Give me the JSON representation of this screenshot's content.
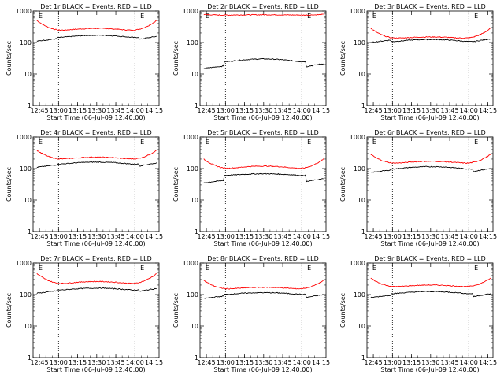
{
  "chart_data": [
    {
      "type": "line",
      "title": "Det 1r  BLACK = Events, RED = LLD",
      "xlabel": "Start Time (06-Jul-09 12:40:00)",
      "ylabel": "Counts/sec",
      "yscale": "log",
      "ylim": [
        1,
        1000
      ],
      "xticks": [
        "12:45",
        "13:00",
        "13:15",
        "13:30",
        "13:45",
        "14:00",
        "14:15"
      ],
      "yticks": [
        "1",
        "10",
        "100",
        "1000"
      ],
      "vlines": [
        "13:00",
        "14:00"
      ],
      "markers": [
        {
          "text": "E",
          "at": "12:43"
        },
        {
          "text": "E",
          "at": "14:03"
        }
      ],
      "series": [
        {
          "color": "#ff0000",
          "y_edge": 500,
          "y_mid": 280,
          "y_min": 230,
          "y_pre": 300,
          "y_post": 310,
          "gap": false
        },
        {
          "color": "#000000",
          "y_edge": 200,
          "y_mid": 170,
          "y_min": 140,
          "y_pre": 110,
          "y_post": 125,
          "gap": true
        }
      ]
    },
    {
      "type": "line",
      "title": "Det 2r  BLACK = Events, RED = LLD",
      "xlabel": "Start Time (06-Jul-09 12:40:00)",
      "ylabel": "Counts/sec",
      "yscale": "log",
      "ylim": [
        1,
        1000
      ],
      "xticks": [
        "12:45",
        "13:00",
        "13:15",
        "13:30",
        "13:45",
        "14:00",
        "14:15"
      ],
      "yticks": [
        "1",
        "10",
        "100",
        "1000"
      ],
      "vlines": [
        "13:00",
        "14:00"
      ],
      "markers": [
        {
          "text": "E",
          "at": "12:43"
        },
        {
          "text": "E",
          "at": "14:03"
        }
      ],
      "series": [
        {
          "color": "#ff0000",
          "y_edge": 780,
          "y_mid": 760,
          "y_min": 740,
          "y_pre": 760,
          "y_post": 760,
          "gap": false
        },
        {
          "color": "#000000",
          "y_edge": 32,
          "y_mid": 30,
          "y_min": 24,
          "y_pre": 15,
          "y_post": 17,
          "gap": true
        }
      ]
    },
    {
      "type": "line",
      "title": "Det 3r  BLACK = Events, RED = LLD",
      "xlabel": "Start Time (06-Jul-09 12:40:00)",
      "ylabel": "Counts/sec",
      "yscale": "log",
      "ylim": [
        1,
        1000
      ],
      "xticks": [
        "12:45",
        "13:00",
        "13:15",
        "13:30",
        "13:45",
        "14:00",
        "14:15"
      ],
      "yticks": [
        "1",
        "10",
        "100",
        "1000"
      ],
      "vlines": [
        "13:00",
        "14:00"
      ],
      "markers": [
        {
          "text": "E",
          "at": "12:43"
        },
        {
          "text": "E",
          "at": "14:03"
        }
      ],
      "series": [
        {
          "color": "#ff0000",
          "y_edge": 280,
          "y_mid": 150,
          "y_min": 130,
          "y_pre": 230,
          "y_post": 200,
          "gap": false
        },
        {
          "color": "#000000",
          "y_edge": 135,
          "y_mid": 125,
          "y_min": 105,
          "y_pre": 100,
          "y_post": 105,
          "gap": true
        }
      ]
    },
    {
      "type": "line",
      "title": "Det 4r  BLACK = Events, RED = LLD",
      "xlabel": "Start Time (06-Jul-09 12:40:00)",
      "ylabel": "Counts/sec",
      "yscale": "log",
      "ylim": [
        1,
        1000
      ],
      "xticks": [
        "12:45",
        "13:00",
        "13:15",
        "13:30",
        "13:45",
        "14:00",
        "14:15"
      ],
      "yticks": [
        "1",
        "10",
        "100",
        "1000"
      ],
      "vlines": [
        "13:00",
        "14:00"
      ],
      "markers": [
        {
          "text": "E",
          "at": "12:43"
        },
        {
          "text": "E",
          "at": "14:03"
        }
      ],
      "series": [
        {
          "color": "#ff0000",
          "y_edge": 380,
          "y_mid": 230,
          "y_min": 190,
          "y_pre": 260,
          "y_post": 320,
          "gap": false
        },
        {
          "color": "#000000",
          "y_edge": 175,
          "y_mid": 160,
          "y_min": 135,
          "y_pre": 110,
          "y_post": 120,
          "gap": true
        }
      ]
    },
    {
      "type": "line",
      "title": "Det 5r  BLACK = Events, RED = LLD",
      "xlabel": "Start Time (06-Jul-09 12:40:00)",
      "ylabel": "Counts/sec",
      "yscale": "log",
      "ylim": [
        1,
        1000
      ],
      "xticks": [
        "12:45",
        "13:00",
        "13:15",
        "13:30",
        "13:45",
        "14:00",
        "14:15"
      ],
      "yticks": [
        "1",
        "10",
        "100",
        "1000"
      ],
      "vlines": [
        "13:00",
        "14:00"
      ],
      "markers": [
        {
          "text": "E",
          "at": "12:43"
        },
        {
          "text": "E",
          "at": "14:03"
        }
      ],
      "series": [
        {
          "color": "#ff0000",
          "y_edge": 200,
          "y_mid": 120,
          "y_min": 95,
          "y_pre": 180,
          "y_post": 220,
          "gap": false
        },
        {
          "color": "#000000",
          "y_edge": 70,
          "y_mid": 68,
          "y_min": 60,
          "y_pre": 35,
          "y_post": 38,
          "gap": true
        }
      ]
    },
    {
      "type": "line",
      "title": "Det 6r  BLACK = Events, RED = LLD",
      "xlabel": "Start Time (06-Jul-09 12:40:00)",
      "ylabel": "Counts/sec",
      "yscale": "log",
      "ylim": [
        1,
        1000
      ],
      "xticks": [
        "12:45",
        "13:00",
        "13:15",
        "13:30",
        "13:45",
        "14:00",
        "14:15"
      ],
      "yticks": [
        "1",
        "10",
        "100",
        "1000"
      ],
      "vlines": [
        "13:00",
        "14:00"
      ],
      "markers": [
        {
          "text": "E",
          "at": "12:43"
        },
        {
          "text": "E",
          "at": "14:03"
        }
      ],
      "series": [
        {
          "color": "#ff0000",
          "y_edge": 280,
          "y_mid": 170,
          "y_min": 140,
          "y_pre": 260,
          "y_post": 260,
          "gap": false
        },
        {
          "color": "#000000",
          "y_edge": 120,
          "y_mid": 115,
          "y_min": 95,
          "y_pre": 75,
          "y_post": 80,
          "gap": true
        }
      ]
    },
    {
      "type": "line",
      "title": "Det 7r  BLACK = Events, RED = LLD",
      "xlabel": "Start Time (06-Jul-09 12:40:00)",
      "ylabel": "Counts/sec",
      "yscale": "log",
      "ylim": [
        1,
        1000
      ],
      "xticks": [
        "12:45",
        "13:00",
        "13:15",
        "13:30",
        "13:45",
        "14:00",
        "14:15"
      ],
      "yticks": [
        "1",
        "10",
        "100",
        "1000"
      ],
      "vlines": [
        "13:00",
        "14:00"
      ],
      "markers": [
        {
          "text": "E",
          "at": "12:43"
        },
        {
          "text": "E",
          "at": "14:03"
        }
      ],
      "series": [
        {
          "color": "#ff0000",
          "y_edge": 460,
          "y_mid": 260,
          "y_min": 210,
          "y_pre": 260,
          "y_post": 320,
          "gap": false
        },
        {
          "color": "#000000",
          "y_edge": 190,
          "y_mid": 160,
          "y_min": 135,
          "y_pre": 110,
          "y_post": 125,
          "gap": true
        }
      ]
    },
    {
      "type": "line",
      "title": "Det 8r  BLACK = Events, RED = LLD",
      "xlabel": "Start Time (06-Jul-09 12:40:00)",
      "ylabel": "Counts/sec",
      "yscale": "log",
      "ylim": [
        1,
        1000
      ],
      "xticks": [
        "12:45",
        "13:00",
        "13:15",
        "13:30",
        "13:45",
        "14:00",
        "14:15"
      ],
      "yticks": [
        "1",
        "10",
        "100",
        "1000"
      ],
      "vlines": [
        "13:00",
        "14:00"
      ],
      "markers": [
        {
          "text": "E",
          "at": "12:43"
        },
        {
          "text": "E",
          "at": "14:03"
        }
      ],
      "series": [
        {
          "color": "#ff0000",
          "y_edge": 280,
          "y_mid": 170,
          "y_min": 145,
          "y_pre": 250,
          "y_post": 270,
          "gap": false
        },
        {
          "color": "#000000",
          "y_edge": 120,
          "y_mid": 115,
          "y_min": 100,
          "y_pre": 75,
          "y_post": 80,
          "gap": true
        }
      ]
    },
    {
      "type": "line",
      "title": "Det 9r  BLACK = Events, RED = LLD",
      "xlabel": "Start Time (06-Jul-09 12:40:00)",
      "ylabel": "Counts/sec",
      "yscale": "log",
      "ylim": [
        1,
        1000
      ],
      "xticks": [
        "12:45",
        "13:00",
        "13:15",
        "13:30",
        "13:45",
        "14:00",
        "14:15"
      ],
      "yticks": [
        "1",
        "10",
        "100",
        "1000"
      ],
      "vlines": [
        "13:00",
        "14:00"
      ],
      "markers": [
        {
          "text": "E",
          "at": "12:43"
        },
        {
          "text": "E",
          "at": "14:03"
        }
      ],
      "series": [
        {
          "color": "#ff0000",
          "y_edge": 330,
          "y_mid": 200,
          "y_min": 170,
          "y_pre": 280,
          "y_post": 300,
          "gap": false
        },
        {
          "color": "#000000",
          "y_edge": 130,
          "y_mid": 125,
          "y_min": 105,
          "y_pre": 80,
          "y_post": 85,
          "gap": true
        }
      ]
    }
  ]
}
